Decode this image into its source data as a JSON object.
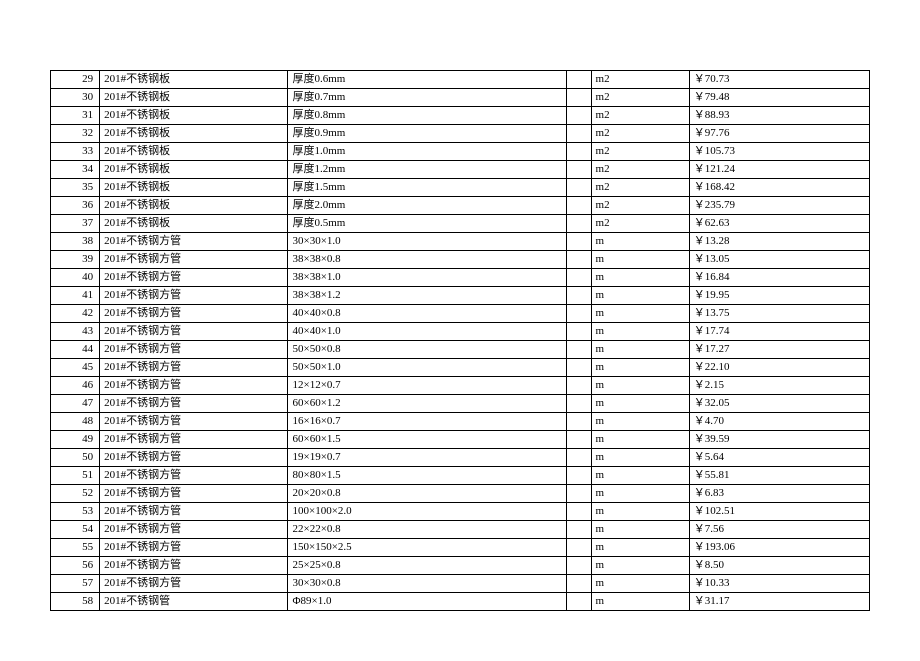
{
  "table": {
    "type": "table",
    "colors": {
      "background": "#ffffff",
      "border": "#000000",
      "text": "#000000"
    },
    "fontsize": 11,
    "column_widths_pct": [
      6,
      23,
      34,
      3,
      12,
      22
    ],
    "column_alignment": [
      "right",
      "left",
      "left",
      "left",
      "left",
      "left"
    ],
    "rows": [
      {
        "no": "29",
        "name": "201#不锈钢板",
        "spec": "厚度0.6mm",
        "blank": "",
        "unit": "m2",
        "price": "￥70.73"
      },
      {
        "no": "30",
        "name": "201#不锈钢板",
        "spec": "厚度0.7mm",
        "blank": "",
        "unit": "m2",
        "price": "￥79.48"
      },
      {
        "no": "31",
        "name": "201#不锈钢板",
        "spec": "厚度0.8mm",
        "blank": "",
        "unit": "m2",
        "price": "￥88.93"
      },
      {
        "no": "32",
        "name": "201#不锈钢板",
        "spec": "厚度0.9mm",
        "blank": "",
        "unit": "m2",
        "price": "￥97.76"
      },
      {
        "no": "33",
        "name": "201#不锈钢板",
        "spec": "厚度1.0mm",
        "blank": "",
        "unit": "m2",
        "price": "￥105.73"
      },
      {
        "no": "34",
        "name": "201#不锈钢板",
        "spec": "厚度1.2mm",
        "blank": "",
        "unit": "m2",
        "price": "￥121.24"
      },
      {
        "no": "35",
        "name": "201#不锈钢板",
        "spec": "厚度1.5mm",
        "blank": "",
        "unit": "m2",
        "price": "￥168.42"
      },
      {
        "no": "36",
        "name": "201#不锈钢板",
        "spec": "厚度2.0mm",
        "blank": "",
        "unit": "m2",
        "price": "￥235.79"
      },
      {
        "no": "37",
        "name": "201#不锈钢板",
        "spec": "厚度0.5mm",
        "blank": "",
        "unit": "m2",
        "price": "￥62.63"
      },
      {
        "no": "38",
        "name": "201#不锈钢方管",
        "spec": "30×30×1.0",
        "blank": "",
        "unit": "m",
        "price": "￥13.28"
      },
      {
        "no": "39",
        "name": "201#不锈钢方管",
        "spec": "38×38×0.8",
        "blank": "",
        "unit": "m",
        "price": "￥13.05"
      },
      {
        "no": "40",
        "name": "201#不锈钢方管",
        "spec": "38×38×1.0",
        "blank": "",
        "unit": "m",
        "price": "￥16.84"
      },
      {
        "no": "41",
        "name": "201#不锈钢方管",
        "spec": "38×38×1.2",
        "blank": "",
        "unit": "m",
        "price": "￥19.95"
      },
      {
        "no": "42",
        "name": "201#不锈钢方管",
        "spec": "40×40×0.8",
        "blank": "",
        "unit": "m",
        "price": "￥13.75"
      },
      {
        "no": "43",
        "name": "201#不锈钢方管",
        "spec": "40×40×1.0",
        "blank": "",
        "unit": "m",
        "price": "￥17.74"
      },
      {
        "no": "44",
        "name": "201#不锈钢方管",
        "spec": "50×50×0.8",
        "blank": "",
        "unit": "m",
        "price": "￥17.27"
      },
      {
        "no": "45",
        "name": "201#不锈钢方管",
        "spec": "50×50×1.0",
        "blank": "",
        "unit": "m",
        "price": "￥22.10"
      },
      {
        "no": "46",
        "name": "201#不锈钢方管",
        "spec": "12×12×0.7",
        "blank": "",
        "unit": "m",
        "price": "￥2.15"
      },
      {
        "no": "47",
        "name": "201#不锈钢方管",
        "spec": "60×60×1.2",
        "blank": "",
        "unit": "m",
        "price": "￥32.05"
      },
      {
        "no": "48",
        "name": "201#不锈钢方管",
        "spec": "16×16×0.7",
        "blank": "",
        "unit": "m",
        "price": "￥4.70"
      },
      {
        "no": "49",
        "name": "201#不锈钢方管",
        "spec": "60×60×1.5",
        "blank": "",
        "unit": "m",
        "price": "￥39.59"
      },
      {
        "no": "50",
        "name": "201#不锈钢方管",
        "spec": "19×19×0.7",
        "blank": "",
        "unit": "m",
        "price": "￥5.64"
      },
      {
        "no": "51",
        "name": "201#不锈钢方管",
        "spec": "80×80×1.5",
        "blank": "",
        "unit": "m",
        "price": "￥55.81"
      },
      {
        "no": "52",
        "name": "201#不锈钢方管",
        "spec": "20×20×0.8",
        "blank": "",
        "unit": "m",
        "price": "￥6.83"
      },
      {
        "no": "53",
        "name": "201#不锈钢方管",
        "spec": "100×100×2.0",
        "blank": "",
        "unit": "m",
        "price": "￥102.51"
      },
      {
        "no": "54",
        "name": "201#不锈钢方管",
        "spec": "22×22×0.8",
        "blank": "",
        "unit": "m",
        "price": "￥7.56"
      },
      {
        "no": "55",
        "name": "201#不锈钢方管",
        "spec": "150×150×2.5",
        "blank": "",
        "unit": "m",
        "price": "￥193.06"
      },
      {
        "no": "56",
        "name": "201#不锈钢方管",
        "spec": "25×25×0.8",
        "blank": "",
        "unit": "m",
        "price": "￥8.50"
      },
      {
        "no": "57",
        "name": "201#不锈钢方管",
        "spec": "30×30×0.8",
        "blank": "",
        "unit": "m",
        "price": "￥10.33"
      },
      {
        "no": "58",
        "name": "201#不锈钢管",
        "spec": "Φ89×1.0",
        "blank": "",
        "unit": "m",
        "price": "￥31.17"
      }
    ]
  }
}
